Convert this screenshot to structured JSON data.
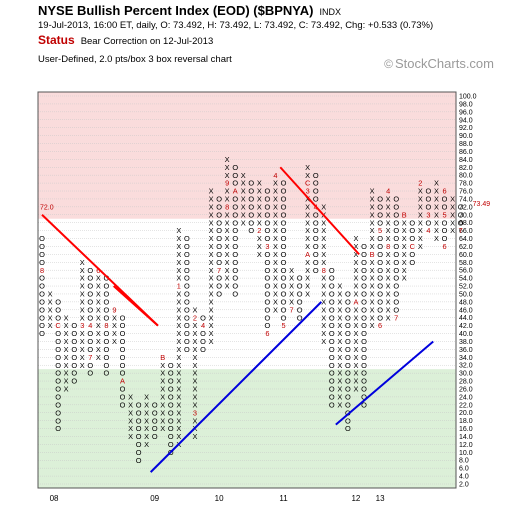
{
  "header": {
    "title": "NYSE Bullish Percent Index (EOD) ($BPNYA)",
    "exchange": "INDX",
    "quote": "19-Jul-2013, 16:00 ET, daily, O: 73.492, H: 73.492, L: 73.492, C: 73.492, Chg: +0.533 (0.73%)",
    "status_label": "Status",
    "status_value": "Bear Correction on 12-Jul-2013",
    "method": "User-Defined, 2.0 pts/box 3 box reversal chart",
    "brand": "StockCharts.com",
    "brand_symbol": "©"
  },
  "chart_data": {
    "type": "point-and-figure",
    "box_size": 2,
    "reversal": 3,
    "ylim": [
      2,
      100
    ],
    "y_ticks": [
      "100.0",
      "98.0",
      "96.0",
      "94.0",
      "92.0",
      "90.0",
      "88.0",
      "86.0",
      "84.0",
      "82.0",
      "80.0",
      "78.0",
      "76.0",
      "74.0",
      "72.0",
      "70.0",
      "68.0",
      "66.0",
      "64.0",
      "62.0",
      "60.0",
      "58.0",
      "56.0",
      "54.0",
      "52.0",
      "50.0",
      "48.0",
      "46.0",
      "44.0",
      "42.0",
      "40.0",
      "38.0",
      "36.0",
      "34.0",
      "32.0",
      "30.0",
      "28.0",
      "26.0",
      "24.0",
      "22.0",
      "20.0",
      "18.0",
      "16.0",
      "14.0",
      "12.0",
      "10.0",
      "8.0",
      "6.0",
      "4.0",
      "2.0"
    ],
    "bands": [
      {
        "name": "overbought",
        "from": 70,
        "to": 100,
        "color": "#fadcdc"
      },
      {
        "name": "oversold",
        "from": 2,
        "to": 30,
        "color": "#dcf0d8"
      }
    ],
    "left_marker": "72.0",
    "last_value_label": "73.49",
    "last_value": 73.49,
    "x_labels": [
      {
        "label": "08",
        "column": 1.5
      },
      {
        "label": "09",
        "column": 14
      },
      {
        "label": "10",
        "column": 22
      },
      {
        "label": "11",
        "column": 30
      },
      {
        "label": "12",
        "column": 39
      },
      {
        "label": "13",
        "column": 42
      }
    ],
    "columns": [
      {
        "type": "O",
        "low": 40,
        "high": 64,
        "marks": {
          "56": "8"
        }
      },
      {
        "type": "X",
        "low": 42,
        "high": 50
      },
      {
        "type": "O",
        "low": 16,
        "high": 48,
        "marks": {
          "42": "C"
        }
      },
      {
        "type": "X",
        "low": 26,
        "high": 44
      },
      {
        "type": "O",
        "low": 28,
        "high": 42
      },
      {
        "type": "X",
        "low": 32,
        "high": 58,
        "marks": {
          "42": "3"
        }
      },
      {
        "type": "O",
        "low": 30,
        "high": 56,
        "marks": {
          "42": "4",
          "34": "7"
        }
      },
      {
        "type": "X",
        "low": 34,
        "high": 56,
        "marks": {
          "56": "6"
        }
      },
      {
        "type": "O",
        "low": 30,
        "high": 54,
        "marks": {
          "42": "8"
        }
      },
      {
        "type": "X",
        "low": 38,
        "high": 46,
        "marks": {
          "46": "9"
        }
      },
      {
        "type": "O",
        "low": 22,
        "high": 44,
        "marks": {
          "28": "A"
        }
      },
      {
        "type": "X",
        "low": 14,
        "high": 24
      },
      {
        "type": "O",
        "low": 8,
        "high": 22
      },
      {
        "type": "X",
        "low": 12,
        "high": 24
      },
      {
        "type": "O",
        "low": 14,
        "high": 22
      },
      {
        "type": "X",
        "low": 16,
        "high": 34,
        "marks": {
          "34": "B"
        }
      },
      {
        "type": "O",
        "low": 10,
        "high": 32
      },
      {
        "type": "X",
        "low": 12,
        "high": 66,
        "marks": {
          "52": "1"
        }
      },
      {
        "type": "O",
        "low": 36,
        "high": 64
      },
      {
        "type": "X",
        "low": 14,
        "high": 46,
        "marks": {
          "20": "3",
          "44": "2"
        }
      },
      {
        "type": "O",
        "low": 36,
        "high": 44,
        "marks": {
          "42": "4"
        }
      },
      {
        "type": "X",
        "low": 38,
        "high": 76
      },
      {
        "type": "O",
        "low": 50,
        "high": 74,
        "marks": {
          "56": "7"
        }
      },
      {
        "type": "X",
        "low": 52,
        "high": 84,
        "marks": {
          "78": "9",
          "72": "8"
        }
      },
      {
        "type": "O",
        "low": 50,
        "high": 82,
        "marks": {
          "76": "A"
        }
      },
      {
        "type": "X",
        "low": 68,
        "high": 80
      },
      {
        "type": "O",
        "low": 66,
        "high": 78
      },
      {
        "type": "X",
        "low": 60,
        "high": 78,
        "marks": {
          "66": "2"
        }
      },
      {
        "type": "O",
        "low": 40,
        "high": 76,
        "marks": {
          "62": "3",
          "40": "6"
        }
      },
      {
        "type": "X",
        "low": 46,
        "high": 80,
        "marks": {
          "80": "4"
        }
      },
      {
        "type": "O",
        "low": 42,
        "high": 78,
        "marks": {
          "42": "5"
        }
      },
      {
        "type": "X",
        "low": 46,
        "high": 56,
        "marks": {
          "46": "7"
        }
      },
      {
        "type": "O",
        "low": 44,
        "high": 54
      },
      {
        "type": "X",
        "low": 50,
        "high": 82,
        "marks": {
          "78": "C",
          "76": "3",
          "60": "A"
        }
      },
      {
        "type": "O",
        "low": 56,
        "high": 80,
        "marks": {
          "72": "4"
        }
      },
      {
        "type": "X",
        "low": 38,
        "high": 72,
        "marks": {
          "56": "8"
        }
      },
      {
        "type": "O",
        "low": 22,
        "high": 56
      },
      {
        "type": "X",
        "low": 22,
        "high": 52
      },
      {
        "type": "O",
        "low": 16,
        "high": 50
      },
      {
        "type": "X",
        "low": 26,
        "high": 64,
        "marks": {
          "48": "A"
        }
      },
      {
        "type": "O",
        "low": 22,
        "high": 62
      },
      {
        "type": "X",
        "low": 42,
        "high": 76,
        "marks": {
          "60": "B"
        }
      },
      {
        "type": "O",
        "low": 42,
        "high": 74,
        "marks": {
          "66": "5",
          "42": "6"
        }
      },
      {
        "type": "X",
        "low": 44,
        "high": 76,
        "marks": {
          "76": "4",
          "62": "8"
        }
      },
      {
        "type": "O",
        "low": 44,
        "high": 74,
        "marks": {
          "44": "7"
        }
      },
      {
        "type": "X",
        "low": 54,
        "high": 70,
        "marks": {
          "70": "B"
        }
      },
      {
        "type": "O",
        "low": 58,
        "high": 68,
        "marks": {
          "62": "C"
        }
      },
      {
        "type": "X",
        "low": 62,
        "high": 78,
        "marks": {
          "78": "2"
        }
      },
      {
        "type": "O",
        "low": 66,
        "high": 76,
        "marks": {
          "70": "3",
          "66": "4"
        }
      },
      {
        "type": "X",
        "low": 64,
        "high": 78
      },
      {
        "type": "O",
        "low": 62,
        "high": 76,
        "marks": {
          "76": "6",
          "70": "5",
          "62": "6"
        }
      },
      {
        "type": "X",
        "low": 66,
        "high": 74
      },
      {
        "type": "O",
        "low": 66,
        "high": 72,
        "marks": {
          "66": "7"
        }
      }
    ],
    "trendlines": [
      {
        "kind": "bearish",
        "color": "#ff0000",
        "points": [
          [
            0,
            70
          ],
          [
            14.4,
            42
          ]
        ]
      },
      {
        "kind": "bearish",
        "color": "#ff0000",
        "points": [
          [
            8.9,
            52
          ],
          [
            14.4,
            42
          ]
        ]
      },
      {
        "kind": "bullish",
        "color": "#0000dd",
        "points": [
          [
            13.5,
            5
          ],
          [
            34.7,
            48
          ]
        ]
      },
      {
        "kind": "bearish",
        "color": "#ff0000",
        "points": [
          [
            29.6,
            82
          ],
          [
            39.4,
            60
          ]
        ]
      },
      {
        "kind": "bullish",
        "color": "#0000dd",
        "points": [
          [
            36.5,
            17
          ],
          [
            48.6,
            38
          ]
        ]
      }
    ]
  }
}
